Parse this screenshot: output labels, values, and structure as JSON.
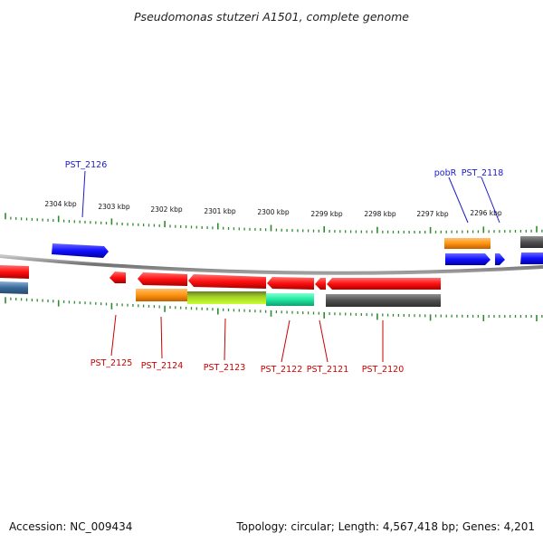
{
  "title": "Pseudomonas stutzeri A1501, complete genome",
  "accession": "Accession: NC_009434",
  "topology": "Topology: circular; Length: 4,567,418 bp; Genes: 4,201",
  "colors": {
    "backbone": "#888888",
    "ticks": "#2e8b2e",
    "forward_label": "#1a1acc",
    "reverse_label": "#cc0000",
    "red": "#ff1a1a",
    "blue": "#1a1aff",
    "orange": "#ff9a1a",
    "lime": "#a8e81a",
    "green_teal": "#22e8a0",
    "gray": "#5a5a5a",
    "steel": "#4a7aa8"
  },
  "scale_labels": [
    "2304 kbp",
    "2303 kbp",
    "2302 kbp",
    "2301 kbp",
    "2300 kbp",
    "2299 kbp",
    "2298 kbp",
    "2297 kbp",
    "2296 kbp"
  ],
  "gene_labels": {
    "pst_2126": "PST_2126",
    "pobr": "pobR",
    "pst_2118": "PST_2118",
    "pst_2125": "PST_2125",
    "pst_2124": "PST_2124",
    "pst_2123": "PST_2123",
    "pst_2122": "PST_2122",
    "pst_2121": "PST_2121",
    "pst_2120": "PST_2120"
  }
}
